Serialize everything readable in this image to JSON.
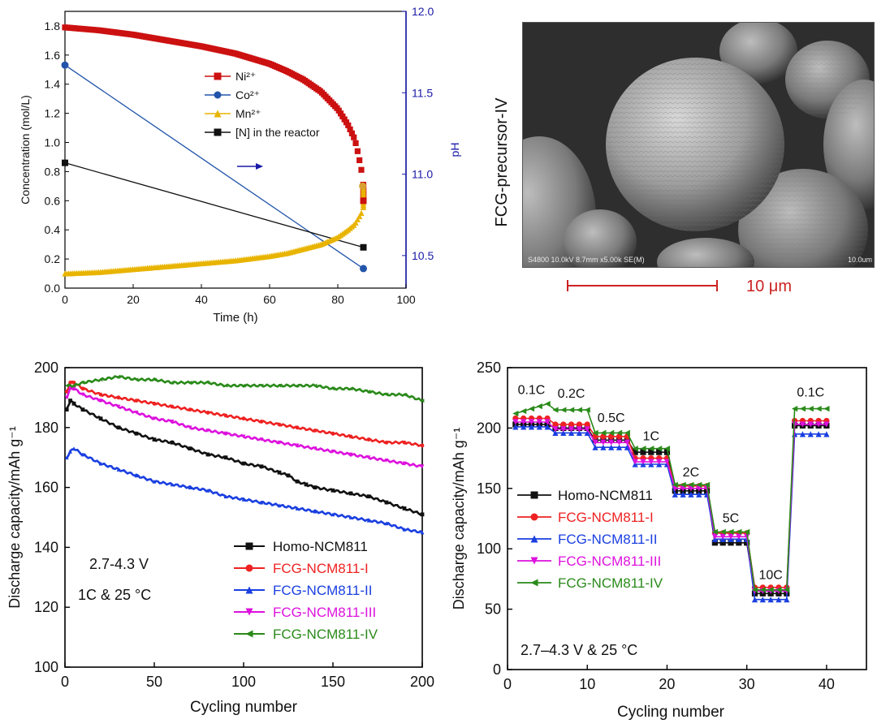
{
  "panels": {
    "sem_label": "FCG-precursor-IV",
    "sem_info": "S4800 10.0kV 8.7mm x5.00k SE(M)",
    "sem_info_right": "10.0um",
    "scale_bar_label": "10 μm"
  },
  "colors": {
    "ni": "#cc1111",
    "co": "#2255aa",
    "mn": "#e8b400",
    "n": "#111111",
    "ph_axis": "#1a1aa8",
    "homo": "#111111",
    "fcg1": "#ee2222",
    "fcg2": "#1a3fe0",
    "fcg3": "#dd11dd",
    "fcg4": "#2a8a1a",
    "scale": "#cc2222"
  },
  "chart_data": [
    {
      "id": "concentration",
      "type": "line",
      "xlabel": "Time (h)",
      "ylabel": "Concentration (mol/L)",
      "y2label": "pH",
      "xlim": [
        0,
        100
      ],
      "ylim": [
        0,
        1.9
      ],
      "y2lim": [
        10.3,
        12.0
      ],
      "xticks": [
        0,
        20,
        40,
        60,
        80,
        100
      ],
      "yticks": [
        0.0,
        0.2,
        0.4,
        0.6,
        0.8,
        1.0,
        1.2,
        1.4,
        1.6,
        1.8
      ],
      "y2ticks": [
        10.5,
        11.0,
        11.5,
        12.0
      ],
      "legend": [
        "Ni²⁺",
        "Co²⁺",
        "Mn²⁺",
        "[N] in the reactor"
      ],
      "arrow_annotation": "→ pH axis",
      "series": [
        {
          "name": "Ni²⁺",
          "axis": "left",
          "x": [
            0,
            10,
            20,
            30,
            40,
            50,
            60,
            65,
            70,
            75,
            80,
            83,
            85,
            86,
            87,
            87.5,
            87.5
          ],
          "y": [
            1.79,
            1.77,
            1.74,
            1.7,
            1.66,
            1.61,
            1.54,
            1.49,
            1.43,
            1.35,
            1.23,
            1.12,
            1.02,
            0.92,
            0.8,
            0.7,
            0.6
          ]
        },
        {
          "name": "Mn²⁺",
          "axis": "left",
          "x": [
            0,
            10,
            20,
            30,
            40,
            50,
            60,
            65,
            70,
            75,
            80,
            83,
            85,
            86,
            87,
            87.5,
            87.5
          ],
          "y": [
            0.1,
            0.11,
            0.13,
            0.15,
            0.17,
            0.19,
            0.22,
            0.24,
            0.27,
            0.3,
            0.35,
            0.4,
            0.44,
            0.48,
            0.52,
            0.56,
            0.7
          ]
        },
        {
          "name": "Co²⁺",
          "axis": "right",
          "x": [
            0,
            87.5
          ],
          "y": [
            11.67,
            10.42
          ]
        },
        {
          "name": "[N] in the reactor",
          "axis": "left",
          "x": [
            0,
            87.5
          ],
          "y": [
            0.86,
            0.28
          ]
        }
      ]
    },
    {
      "id": "cycling",
      "type": "line",
      "xlabel": "Cycling number",
      "ylabel": "Discharge capacity/mAh g⁻¹",
      "xlim": [
        0,
        200
      ],
      "ylim": [
        100,
        200
      ],
      "xticks": [
        0,
        50,
        100,
        150,
        200
      ],
      "yticks": [
        100,
        120,
        140,
        160,
        180,
        200
      ],
      "annotation_lines": [
        "2.7-4.3 V",
        "1C & 25 °C"
      ],
      "series": [
        {
          "name": "Homo-NCM811",
          "x": [
            1,
            3,
            5,
            10,
            20,
            30,
            40,
            50,
            60,
            70,
            80,
            90,
            100,
            110,
            120,
            125,
            130,
            135,
            140,
            150,
            160,
            170,
            180,
            190,
            200
          ],
          "values": [
            186,
            189,
            188,
            186,
            183,
            180,
            178,
            176,
            175,
            173,
            171,
            170,
            168,
            167,
            165,
            164,
            162,
            161,
            160,
            159,
            158,
            157,
            155,
            153,
            151
          ]
        },
        {
          "name": "FCG-NCM811-I",
          "x": [
            1,
            3,
            5,
            10,
            20,
            30,
            40,
            50,
            60,
            70,
            80,
            90,
            100,
            110,
            120,
            130,
            140,
            150,
            160,
            170,
            180,
            190,
            200
          ],
          "values": [
            192,
            195,
            195,
            193,
            191,
            190,
            189,
            188,
            187,
            186,
            185,
            184,
            183,
            182,
            181,
            180,
            179,
            178,
            177,
            176,
            175,
            175,
            174
          ]
        },
        {
          "name": "FCG-NCM811-II",
          "x": [
            1,
            3,
            5,
            10,
            20,
            30,
            40,
            50,
            60,
            70,
            80,
            90,
            100,
            110,
            120,
            130,
            140,
            150,
            160,
            170,
            180,
            190,
            200
          ],
          "values": [
            170,
            172,
            173,
            171,
            168,
            166,
            164,
            162,
            161,
            160,
            159,
            157,
            156,
            155,
            154,
            153,
            152,
            151,
            150,
            149,
            148,
            146,
            145
          ]
        },
        {
          "name": "FCG-NCM811-III",
          "x": [
            1,
            3,
            5,
            10,
            20,
            30,
            40,
            50,
            60,
            70,
            80,
            90,
            100,
            110,
            120,
            130,
            140,
            150,
            160,
            170,
            180,
            190,
            200
          ],
          "values": [
            190,
            193,
            193,
            191,
            189,
            187,
            185,
            183,
            182,
            180,
            179,
            178,
            177,
            176,
            175,
            174,
            173,
            172,
            171,
            170,
            169,
            168,
            167
          ]
        },
        {
          "name": "FCG-NCM811-IV",
          "x": [
            1,
            5,
            10,
            20,
            30,
            40,
            50,
            60,
            70,
            80,
            90,
            100,
            110,
            120,
            130,
            140,
            150,
            160,
            170,
            180,
            190,
            200
          ],
          "values": [
            194,
            194,
            195,
            196,
            197,
            196,
            196,
            195,
            195,
            195,
            194,
            194,
            194,
            194,
            194,
            194,
            193,
            193,
            192,
            191,
            191,
            189
          ]
        }
      ]
    },
    {
      "id": "rate",
      "type": "line",
      "xlabel": "Cycling number",
      "ylabel": "Discharge capacity/mAh g⁻¹",
      "xlim": [
        0,
        45
      ],
      "ylim": [
        0,
        250
      ],
      "xticks": [
        0,
        10,
        20,
        30,
        40
      ],
      "yticks": [
        0,
        50,
        100,
        150,
        200,
        250
      ],
      "annotation": "2.7–4.3 V & 25 °C",
      "rate_labels": [
        {
          "label": "0.1C",
          "x": 3,
          "y": 228
        },
        {
          "label": "0.2C",
          "x": 8,
          "y": 225
        },
        {
          "label": "0.5C",
          "x": 13,
          "y": 205
        },
        {
          "label": "1C",
          "x": 18,
          "y": 190
        },
        {
          "label": "2C",
          "x": 23,
          "y": 160
        },
        {
          "label": "5C",
          "x": 28,
          "y": 122
        },
        {
          "label": "10C",
          "x": 33,
          "y": 75
        },
        {
          "label": "0.1C",
          "x": 38,
          "y": 226
        }
      ],
      "rate_blocks": [
        [
          1,
          5
        ],
        [
          6,
          10
        ],
        [
          11,
          15
        ],
        [
          16,
          20
        ],
        [
          21,
          25
        ],
        [
          26,
          30
        ],
        [
          31,
          35
        ],
        [
          36,
          40
        ]
      ],
      "series": [
        {
          "name": "Homo-NCM811",
          "levels": [
            203,
            200,
            190,
            180,
            148,
            105,
            63,
            202
          ]
        },
        {
          "name": "FCG-NCM811-I",
          "levels": [
            208,
            203,
            193,
            175,
            152,
            113,
            68,
            206
          ]
        },
        {
          "name": "FCG-NCM811-II",
          "levels": [
            201,
            196,
            184,
            170,
            145,
            108,
            58,
            195
          ]
        },
        {
          "name": "FCG-NCM811-III",
          "levels": [
            205,
            199,
            188,
            172,
            150,
            110,
            65,
            203
          ]
        },
        {
          "name": "FCG-NCM811-IV",
          "levels": [
            220,
            215,
            196,
            183,
            153,
            114,
            66,
            216
          ]
        }
      ]
    }
  ]
}
